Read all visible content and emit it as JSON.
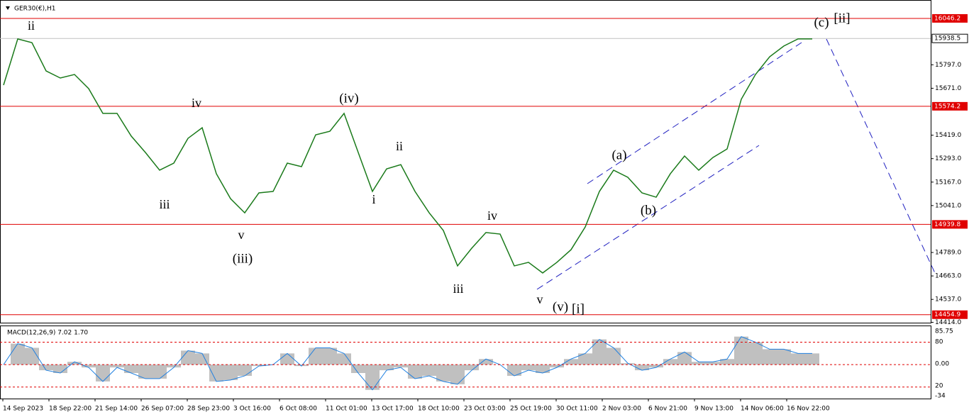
{
  "chart_data": {
    "type": "line",
    "title": "GER30(€),H1",
    "color": "#1a7a1a",
    "values": [
      15688,
      15936,
      15916,
      15764,
      15726,
      15745,
      15669,
      15536,
      15536,
      15414,
      15326,
      15231,
      15269,
      15402,
      15459,
      15212,
      15078,
      15002,
      15109,
      15117,
      15269,
      15250,
      15421,
      15440,
      15536,
      15326,
      15117,
      15238,
      15261,
      15117,
      15002,
      14907,
      14717,
      14812,
      14896,
      14888,
      14717,
      14736,
      14679,
      14736,
      14804,
      14926,
      15117,
      15231,
      15193,
      15109,
      15086,
      15212,
      15307,
      15231,
      15299,
      15345,
      15612,
      15745,
      15840,
      15898,
      15936,
      15936
    ],
    "ylim": [
      14412,
      16145
    ],
    "yticks": [
      {
        "value": 15797,
        "label": "15797.0"
      },
      {
        "value": 15671,
        "label": "15671.0"
      },
      {
        "value": 15419,
        "label": "15419.0"
      },
      {
        "value": 15293,
        "label": "15293.0"
      },
      {
        "value": 15167,
        "label": "15167.0"
      },
      {
        "value": 15041,
        "label": "15041.0"
      },
      {
        "value": 14789,
        "label": "14789.0"
      },
      {
        "value": 14663,
        "label": "14663.0"
      },
      {
        "value": 14537,
        "label": "14537.0"
      },
      {
        "value": 14414,
        "label": "14414.0"
      }
    ],
    "levels": [
      16046.2,
      15574.2,
      14939.8,
      14454.9
    ],
    "level_color": "#e00000",
    "current_price": 15938.5,
    "x_labels": [
      "14 Sep 2023",
      "18 Sep 22:00",
      "21 Sep 14:00",
      "26 Sep 07:00",
      "28 Sep 23:00",
      "3 Oct 16:00",
      "6 Oct 08:00",
      "11 Oct 01:00",
      "13 Oct 17:00",
      "18 Oct 10:00",
      "23 Oct 03:00",
      "25 Oct 19:00",
      "30 Oct 11:00",
      "2 Nov 03:00",
      "6 Nov 21:00",
      "9 Nov 13:00",
      "14 Nov 06:00",
      "16 Nov 22:00"
    ],
    "waves": [
      "ii",
      "iv",
      "iii",
      "v",
      "(iii)",
      "(iv)",
      "ii",
      "i",
      "iv",
      "iii",
      "v",
      "(v)",
      "[i]",
      "(a)",
      "(b)",
      "(c)",
      "[ii]"
    ],
    "macd": {
      "title": "MACD(12,26,9) 7.02 1.70",
      "color": "#c0c0c0",
      "values": [
        0,
        75,
        60,
        -20,
        -30,
        10,
        -10,
        -60,
        -10,
        -30,
        -50,
        -50,
        -10,
        50,
        40,
        -60,
        -55,
        -40,
        -5,
        0,
        40,
        -5,
        60,
        60,
        40,
        -30,
        -90,
        -20,
        -10,
        -50,
        -40,
        -60,
        -70,
        -20,
        20,
        0,
        -40,
        -20,
        -30,
        -10,
        20,
        40,
        90,
        60,
        5,
        -20,
        -10,
        20,
        45,
        10,
        10,
        20,
        100,
        80,
        55,
        55,
        40,
        40
      ],
      "ylim": [
        -121,
        137
      ],
      "levels": [
        80,
        0,
        -80
      ],
      "scale_labels": [
        "85.75",
        "80",
        "0.00",
        "20",
        "-34"
      ]
    }
  }
}
